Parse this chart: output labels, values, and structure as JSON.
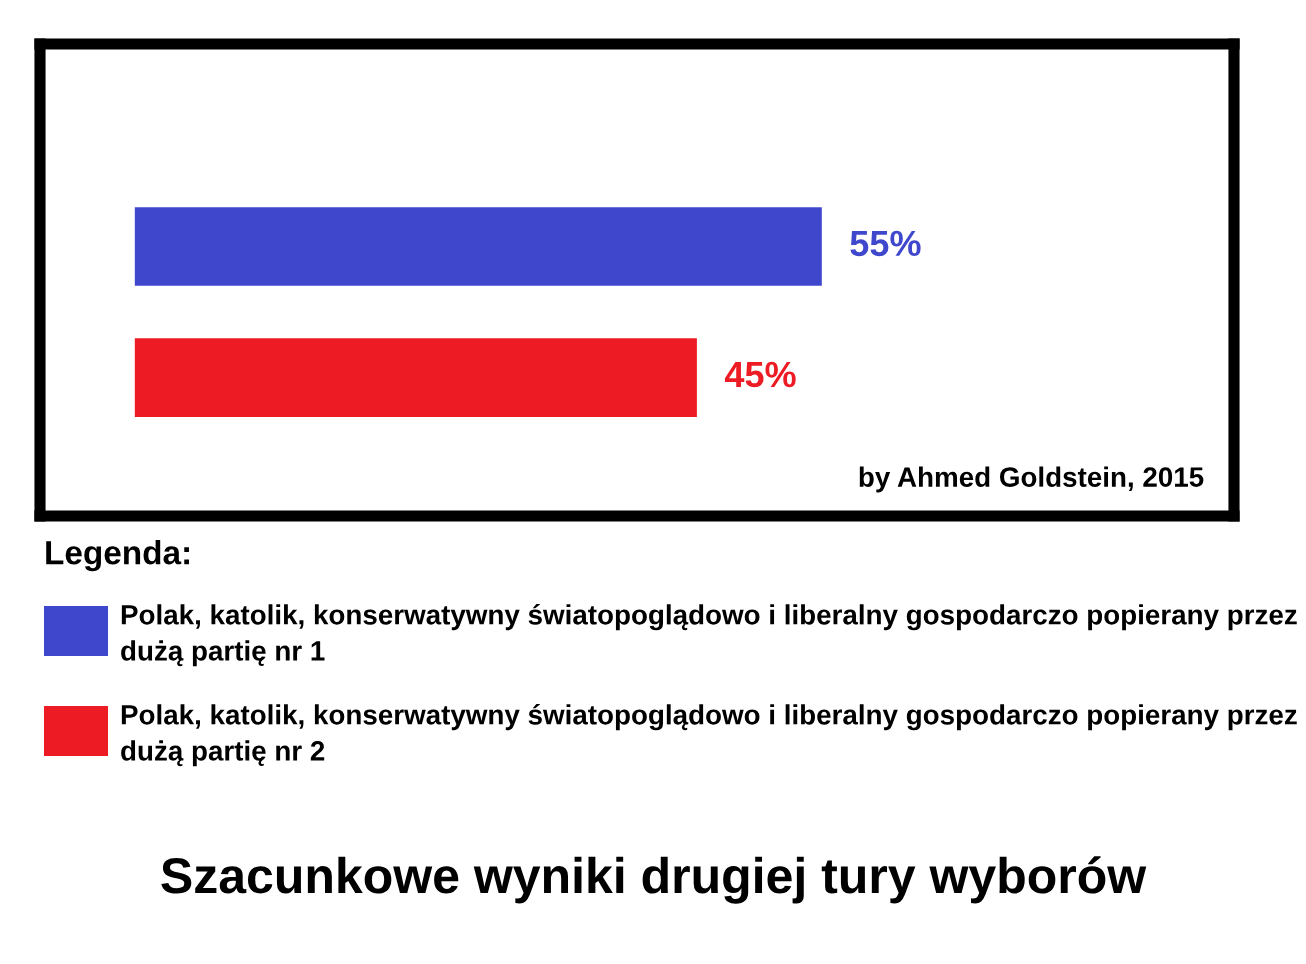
{
  "chart_data": {
    "type": "bar",
    "orientation": "horizontal",
    "title": "Szacunkowe wyniki drugiej tury wyborów",
    "categories": [
      null
    ],
    "series": [
      {
        "name": "Polak, katolik, konserwatywny światopoglądowo i liberalny gospodarczo popierany przez dużą partię nr 1",
        "color": "#3f48cc",
        "values": [
          55
        ],
        "value_labels": [
          "55%"
        ]
      },
      {
        "name": "Polak, katolik, konserwatywny światopoglądowo i liberalny gospodarczo popierany przez dużą partię nr 2",
        "color": "#ed1c24",
        "values": [
          45
        ],
        "value_labels": [
          "45%"
        ]
      }
    ],
    "legend": "bottom",
    "legend_title": "Legenda:",
    "annotations": [
      "by Ahmed Goldstein, 2015"
    ]
  }
}
